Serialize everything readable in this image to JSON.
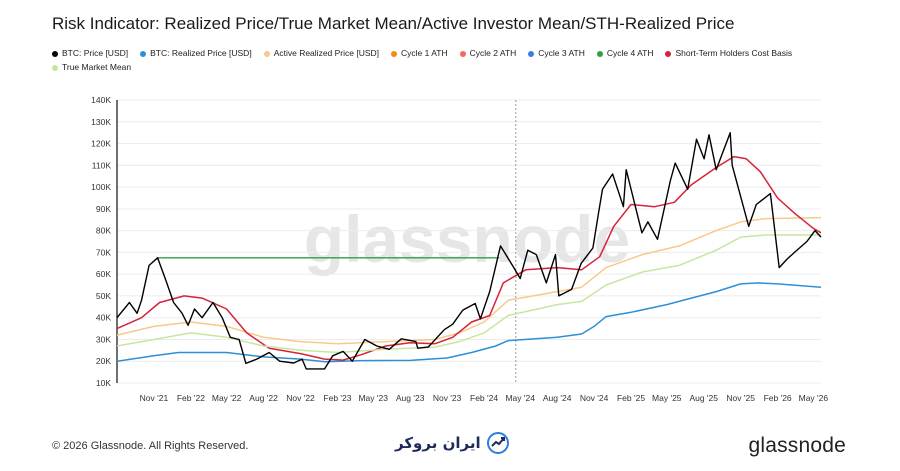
{
  "title": "Risk Indicator: Realized Price/True Market Mean/Active Investor Mean/STH-Realized Price",
  "legend": [
    {
      "label": "BTC: Price [USD]",
      "color": "#000000"
    },
    {
      "label": "BTC: Realized Price [USD]",
      "color": "#2f8fd6"
    },
    {
      "label": "Active Realized Price [USD]",
      "color": "#f7c98a"
    },
    {
      "label": "Cycle 1 ATH",
      "color": "#f08a1c"
    },
    {
      "label": "Cycle 2 ATH",
      "color": "#f06a5a"
    },
    {
      "label": "Cycle 3 ATH",
      "color": "#3a7de0"
    },
    {
      "label": "Cycle 4 ATH",
      "color": "#2ea043"
    },
    {
      "label": "Short-Term Holders Cost Basis",
      "color": "#d6223a"
    },
    {
      "label": "True Market Mean",
      "color": "#c8e6a0"
    }
  ],
  "watermark": "glassnode",
  "footer": {
    "copyright": "© 2026 Glassnode. All Rights Reserved.",
    "brand_text": "ایران بروکر",
    "logo_text": "glassnode"
  },
  "chart_data": {
    "type": "line",
    "ylim": [
      10000,
      140000
    ],
    "yticks": [
      "10K",
      "20K",
      "30K",
      "40K",
      "50K",
      "60K",
      "70K",
      "80K",
      "90K",
      "100K",
      "110K",
      "120K",
      "130K",
      "140K"
    ],
    "xticks": [
      "Nov '21",
      "Feb '22",
      "May '22",
      "Aug '22",
      "Nov '22",
      "Feb '23",
      "May '23",
      "Aug '23",
      "Nov '23",
      "Feb '24",
      "May '24",
      "Aug '24",
      "Nov '24",
      "Feb '25",
      "May '25",
      "Aug '25",
      "Nov '25",
      "Feb '26",
      "May '26"
    ],
    "x_start": "2021-08-01",
    "x_end": "2026-05-20",
    "annotations": [
      {
        "type": "hline",
        "label": "Cycle 4 ATH",
        "value": 67500,
        "from": "2021-11-10",
        "to": "2024-03-10",
        "color": "#2ea043"
      },
      {
        "type": "vline",
        "value": "2024-04-20",
        "color": "#999999",
        "style": "dashed"
      }
    ],
    "series": [
      {
        "name": "BTC: Price [USD]",
        "color": "#000000",
        "points": [
          [
            "2021-08-01",
            40000
          ],
          [
            "2021-09-01",
            47000
          ],
          [
            "2021-09-20",
            42000
          ],
          [
            "2021-10-01",
            48000
          ],
          [
            "2021-10-20",
            64000
          ],
          [
            "2021-11-10",
            67500
          ],
          [
            "2021-12-01",
            57000
          ],
          [
            "2021-12-20",
            47000
          ],
          [
            "2022-01-10",
            42000
          ],
          [
            "2022-01-25",
            36500
          ],
          [
            "2022-02-10",
            44000
          ],
          [
            "2022-03-01",
            40000
          ],
          [
            "2022-03-28",
            47000
          ],
          [
            "2022-04-20",
            40000
          ],
          [
            "2022-05-10",
            31000
          ],
          [
            "2022-06-01",
            30000
          ],
          [
            "2022-06-18",
            19000
          ],
          [
            "2022-07-15",
            21000
          ],
          [
            "2022-08-15",
            24000
          ],
          [
            "2022-09-10",
            20000
          ],
          [
            "2022-10-15",
            19200
          ],
          [
            "2022-11-05",
            21000
          ],
          [
            "2022-11-15",
            16500
          ],
          [
            "2022-12-31",
            16500
          ],
          [
            "2023-01-20",
            22500
          ],
          [
            "2023-02-15",
            24500
          ],
          [
            "2023-03-10",
            20000
          ],
          [
            "2023-04-10",
            30000
          ],
          [
            "2023-05-10",
            27000
          ],
          [
            "2023-06-10",
            25500
          ],
          [
            "2023-07-10",
            30300
          ],
          [
            "2023-08-15",
            29000
          ],
          [
            "2023-08-20",
            26000
          ],
          [
            "2023-09-15",
            26500
          ],
          [
            "2023-10-25",
            34500
          ],
          [
            "2023-11-15",
            37000
          ],
          [
            "2023-12-10",
            43500
          ],
          [
            "2024-01-10",
            46500
          ],
          [
            "2024-01-23",
            39500
          ],
          [
            "2024-02-15",
            52000
          ],
          [
            "2024-03-13",
            73000
          ],
          [
            "2024-04-15",
            63000
          ],
          [
            "2024-05-01",
            58000
          ],
          [
            "2024-05-20",
            71000
          ],
          [
            "2024-06-10",
            69000
          ],
          [
            "2024-07-05",
            56000
          ],
          [
            "2024-07-28",
            69000
          ],
          [
            "2024-08-05",
            50000
          ],
          [
            "2024-09-06",
            53000
          ],
          [
            "2024-09-30",
            65000
          ],
          [
            "2024-10-29",
            72000
          ],
          [
            "2024-11-12",
            88000
          ],
          [
            "2024-11-22",
            99000
          ],
          [
            "2024-12-17",
            106000
          ],
          [
            "2025-01-13",
            91000
          ],
          [
            "2025-01-20",
            108000
          ],
          [
            "2025-02-28",
            79000
          ],
          [
            "2025-03-15",
            84000
          ],
          [
            "2025-04-08",
            76000
          ],
          [
            "2025-05-10",
            103000
          ],
          [
            "2025-05-22",
            111000
          ],
          [
            "2025-06-22",
            99000
          ],
          [
            "2025-07-14",
            122000
          ],
          [
            "2025-08-02",
            113000
          ],
          [
            "2025-08-14",
            124000
          ],
          [
            "2025-09-01",
            108000
          ],
          [
            "2025-10-06",
            125000
          ],
          [
            "2025-10-11",
            110000
          ],
          [
            "2025-11-21",
            82000
          ],
          [
            "2025-12-10",
            92000
          ],
          [
            "2026-01-14",
            97000
          ],
          [
            "2026-02-05",
            63000
          ],
          [
            "2026-02-25",
            67000
          ],
          [
            "2026-03-15",
            70000
          ],
          [
            "2026-04-15",
            75000
          ],
          [
            "2026-05-05",
            80000
          ],
          [
            "2026-05-20",
            77000
          ]
        ]
      },
      {
        "name": "BTC: Realized Price [USD]",
        "color": "#2f8fd6",
        "points": [
          [
            "2021-08-01",
            20000
          ],
          [
            "2021-11-01",
            22500
          ],
          [
            "2022-01-01",
            24000
          ],
          [
            "2022-05-01",
            24000
          ],
          [
            "2022-08-01",
            22000
          ],
          [
            "2022-11-01",
            21000
          ],
          [
            "2023-01-01",
            19800
          ],
          [
            "2023-04-01",
            20300
          ],
          [
            "2023-08-01",
            20400
          ],
          [
            "2023-11-01",
            21500
          ],
          [
            "2024-01-01",
            24000
          ],
          [
            "2024-03-01",
            27000
          ],
          [
            "2024-04-01",
            29500
          ],
          [
            "2024-08-01",
            31000
          ],
          [
            "2024-10-01",
            32500
          ],
          [
            "2024-11-01",
            36000
          ],
          [
            "2024-12-01",
            40500
          ],
          [
            "2025-02-01",
            42500
          ],
          [
            "2025-05-01",
            46000
          ],
          [
            "2025-07-01",
            49000
          ],
          [
            "2025-09-01",
            52000
          ],
          [
            "2025-11-01",
            55500
          ],
          [
            "2025-12-15",
            56000
          ],
          [
            "2026-02-01",
            55500
          ],
          [
            "2026-05-20",
            54000
          ]
        ]
      },
      {
        "name": "Active Realized Price [USD]",
        "color": "#f7c98a",
        "points": [
          [
            "2021-08-01",
            32000
          ],
          [
            "2021-11-01",
            36000
          ],
          [
            "2022-02-01",
            38000
          ],
          [
            "2022-05-01",
            36000
          ],
          [
            "2022-08-01",
            31000
          ],
          [
            "2022-11-01",
            29000
          ],
          [
            "2023-02-01",
            28000
          ],
          [
            "2023-06-01",
            29000
          ],
          [
            "2023-10-01",
            30000
          ],
          [
            "2023-12-01",
            33000
          ],
          [
            "2024-02-01",
            38000
          ],
          [
            "2024-04-01",
            48000
          ],
          [
            "2024-08-01",
            52000
          ],
          [
            "2024-10-01",
            54000
          ],
          [
            "2024-12-01",
            63000
          ],
          [
            "2025-03-01",
            69000
          ],
          [
            "2025-06-01",
            73000
          ],
          [
            "2025-09-01",
            80000
          ],
          [
            "2025-11-01",
            84000
          ],
          [
            "2026-01-01",
            85500
          ],
          [
            "2026-05-20",
            86000
          ]
        ]
      },
      {
        "name": "True Market Mean",
        "color": "#c8e6a0",
        "points": [
          [
            "2021-08-01",
            27000
          ],
          [
            "2021-11-01",
            30000
          ],
          [
            "2022-02-01",
            33000
          ],
          [
            "2022-05-01",
            31000
          ],
          [
            "2022-08-01",
            27000
          ],
          [
            "2022-11-01",
            25000
          ],
          [
            "2023-02-01",
            24000
          ],
          [
            "2023-06-01",
            25500
          ],
          [
            "2023-10-01",
            26500
          ],
          [
            "2023-12-01",
            29000
          ],
          [
            "2024-02-01",
            33000
          ],
          [
            "2024-04-01",
            41000
          ],
          [
            "2024-08-01",
            46000
          ],
          [
            "2024-10-01",
            47500
          ],
          [
            "2024-12-01",
            55000
          ],
          [
            "2025-03-01",
            61000
          ],
          [
            "2025-06-01",
            64000
          ],
          [
            "2025-09-01",
            71000
          ],
          [
            "2025-11-01",
            77000
          ],
          [
            "2026-01-01",
            78000
          ],
          [
            "2026-05-20",
            78000
          ]
        ]
      },
      {
        "name": "Short-Term Holders Cost Basis",
        "color": "#d6223a",
        "points": [
          [
            "2021-08-01",
            35000
          ],
          [
            "2021-10-01",
            40000
          ],
          [
            "2021-11-15",
            47000
          ],
          [
            "2022-01-15",
            50000
          ],
          [
            "2022-03-01",
            49000
          ],
          [
            "2022-05-01",
            44000
          ],
          [
            "2022-06-20",
            33000
          ],
          [
            "2022-08-15",
            26000
          ],
          [
            "2022-11-01",
            23500
          ],
          [
            "2022-12-31",
            21000
          ],
          [
            "2023-02-15",
            20500
          ],
          [
            "2023-04-01",
            23000
          ],
          [
            "2023-06-01",
            27000
          ],
          [
            "2023-08-01",
            28500
          ],
          [
            "2023-10-01",
            28000
          ],
          [
            "2023-11-15",
            31000
          ],
          [
            "2024-01-01",
            38000
          ],
          [
            "2024-02-15",
            41000
          ],
          [
            "2024-03-20",
            56000
          ],
          [
            "2024-05-15",
            62000
          ],
          [
            "2024-08-01",
            63000
          ],
          [
            "2024-10-01",
            62000
          ],
          [
            "2024-11-15",
            68000
          ],
          [
            "2024-12-20",
            82000
          ],
          [
            "2025-02-01",
            92000
          ],
          [
            "2025-04-01",
            91000
          ],
          [
            "2025-05-20",
            93000
          ],
          [
            "2025-07-01",
            101000
          ],
          [
            "2025-09-01",
            109000
          ],
          [
            "2025-10-15",
            114000
          ],
          [
            "2025-11-15",
            113000
          ],
          [
            "2025-12-20",
            107000
          ],
          [
            "2026-02-01",
            95000
          ],
          [
            "2026-03-15",
            88000
          ],
          [
            "2026-05-01",
            81000
          ],
          [
            "2026-05-20",
            79000
          ]
        ]
      }
    ]
  }
}
